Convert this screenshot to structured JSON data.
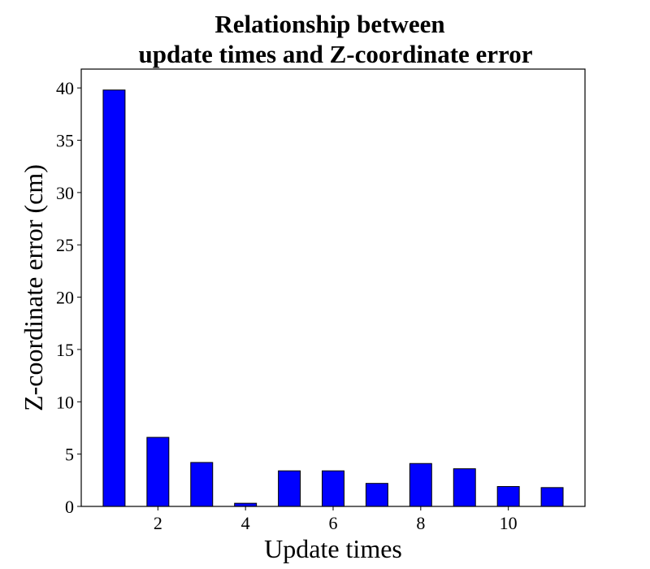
{
  "chart_data": {
    "type": "bar",
    "title_lines": [
      "Relationship between",
      "update times and Z-coordinate error"
    ],
    "xlabel": "Update times",
    "ylabel": "Z-coordinate error (cm)",
    "x": [
      1,
      2,
      3,
      4,
      5,
      6,
      7,
      8,
      9,
      10,
      11
    ],
    "values": [
      39.8,
      6.6,
      4.2,
      0.3,
      3.4,
      3.4,
      2.2,
      4.1,
      3.6,
      1.9,
      1.8
    ],
    "xlim": [
      0.25,
      11.75
    ],
    "ylim": [
      0,
      41.8
    ],
    "xticks": [
      2,
      4,
      6,
      8,
      10
    ],
    "yticks": [
      0,
      5,
      10,
      15,
      20,
      25,
      30,
      35,
      40
    ],
    "bar_color": "#0000ff",
    "edge_color": "#000000",
    "grid": false,
    "legend": "none"
  }
}
